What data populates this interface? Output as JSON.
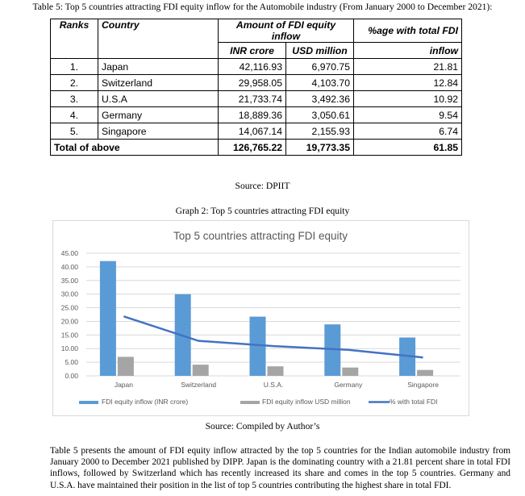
{
  "table": {
    "caption": "Table 5: Top 5 countries attracting FDI equity inflow for the Automobile industry (From January 2000 to December 2021):",
    "headers": {
      "ranks": "Ranks",
      "country": "Country",
      "amount": "Amount of FDI equity inflow",
      "inr": "INR crore",
      "usd": "USD million",
      "pct_line1": "%age with total FDI",
      "pct_line2": "inflow"
    },
    "rows": [
      {
        "rank": "1.",
        "country": "Japan",
        "inr": "42,116.93",
        "usd": "6,970.75",
        "pct": "21.81"
      },
      {
        "rank": "2.",
        "country": "Switzerland",
        "inr": "29,958.05",
        "usd": "4,103.70",
        "pct": "12.84"
      },
      {
        "rank": "3.",
        "country": "U.S.A",
        "inr": "21,733.74",
        "usd": "3,492.36",
        "pct": "10.92"
      },
      {
        "rank": "4.",
        "country": "Germany",
        "inr": "18,889.36",
        "usd": "3,050.61",
        "pct": "9.54"
      },
      {
        "rank": "5.",
        "country": "Singapore",
        "inr": "14,067.14",
        "usd": "2,155.93",
        "pct": "6.74"
      }
    ],
    "total": {
      "label": "Total of above",
      "inr": "126,765.22",
      "usd": "19,773.35",
      "pct": "61.85"
    },
    "source": "Source: DPIIT"
  },
  "graph_caption": "Graph 2: Top 5 countries attracting FDI equity",
  "chart_data": {
    "type": "bar",
    "title": "Top 5 countries attracting FDI equity",
    "categories": [
      "Japan",
      "Switzerland",
      "U.S.A.",
      "Germany",
      "Singapore"
    ],
    "y_ticks": [
      "0.00",
      "5.00",
      "10.00",
      "15.00",
      "20.00",
      "25.00",
      "30.00",
      "35.00",
      "40.00",
      "45.00"
    ],
    "ylim": [
      0,
      45
    ],
    "grid": true,
    "legend_position": "bottom",
    "series": [
      {
        "name": "FDI equity inflow (INR crore)",
        "type": "bar",
        "color": "#5b9bd5",
        "values": [
          42.12,
          29.96,
          21.73,
          18.89,
          14.07
        ]
      },
      {
        "name": "FDI equity inflow USD million",
        "type": "bar",
        "color": "#a5a5a5",
        "values": [
          6.97,
          4.1,
          3.49,
          3.05,
          2.16
        ]
      },
      {
        "name": "% with total FDI",
        "type": "line",
        "color": "#4472c4",
        "values": [
          21.81,
          12.84,
          10.92,
          9.54,
          6.74
        ]
      }
    ]
  },
  "chart_source": "Source: Compiled by Author’s",
  "paragraph": "Table 5 presents the amount of FDI equity inflow attracted by the top 5 countries for the Indian automobile industry from January 2000 to December 2021 published by DIPP. Japan is the dominating country with a 21.81 percent share in total FDI inflows, followed by Switzerland which has recently increased its share and comes in the top 5 countries. Germany and U.S.A. have maintained their position in the list of top 5 countries contributing the highest share in total FDI."
}
